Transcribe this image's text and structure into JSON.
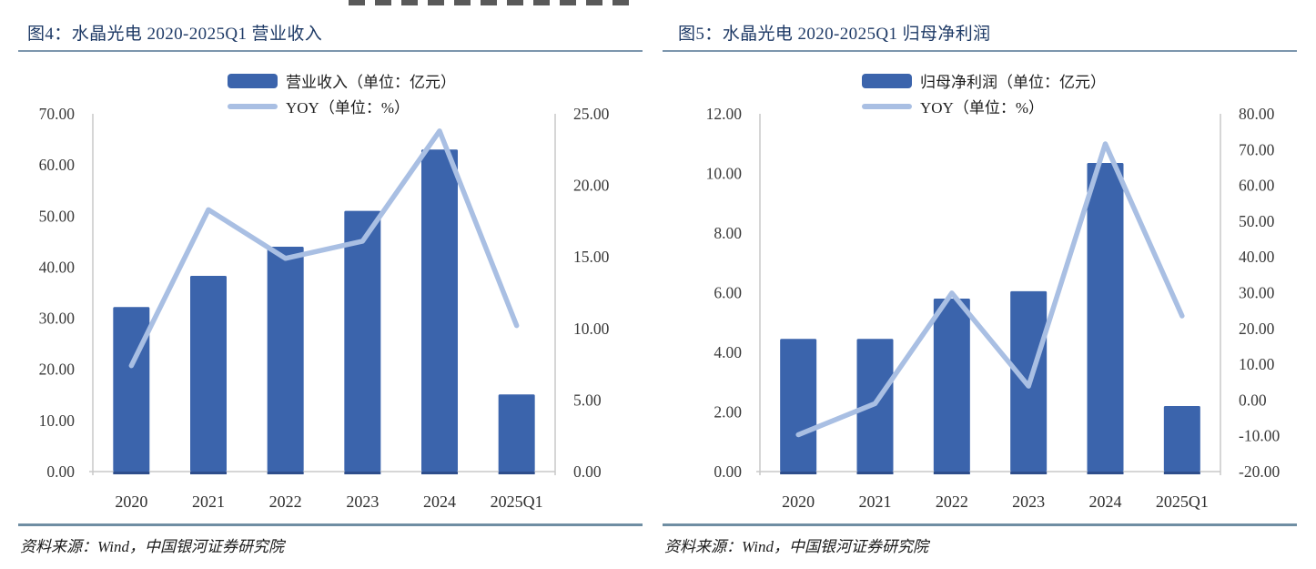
{
  "colors": {
    "bar": "#3B64AC",
    "bar_edge": "#2E4E8C",
    "line": "#A9BFE3",
    "title": "#1E3A66",
    "rule_top": "#7C96AD",
    "rule_bottom": "#6F8EA3",
    "axis": "#C9C9C9"
  },
  "footer": {
    "source": "资料来源：Wind，中国银河证券研究院"
  },
  "chart_data": [
    {
      "type": "bar+line",
      "title": "图4：水晶光电 2020-2025Q1 营业收入",
      "categories": [
        "2020",
        "2021",
        "2022",
        "2023",
        "2024",
        "2025Q1"
      ],
      "series": [
        {
          "name": "营业收入（单位：亿元）",
          "type": "bar",
          "axis": "left",
          "values": [
            32.2,
            38.3,
            44.0,
            51.0,
            63.0,
            15.1
          ]
        },
        {
          "name": "YOY（单位：%）",
          "type": "line",
          "axis": "right",
          "values": [
            7.4,
            18.3,
            14.9,
            16.1,
            23.8,
            10.2
          ]
        }
      ],
      "y_left": {
        "min": 0,
        "max": 70,
        "ticks": [
          0,
          10,
          20,
          30,
          40,
          50,
          60,
          70
        ]
      },
      "y_right": {
        "min": 0,
        "max": 25,
        "ticks": [
          0,
          5,
          10,
          15,
          20,
          25
        ]
      },
      "xlabel": "",
      "ylabel": "",
      "legend_position": "top",
      "grid": false
    },
    {
      "type": "bar+line",
      "title": "图5：水晶光电 2020-2025Q1 归母净利润",
      "categories": [
        "2020",
        "2021",
        "2022",
        "2023",
        "2024",
        "2025Q1"
      ],
      "series": [
        {
          "name": "归母净利润（单位：亿元）",
          "type": "bar",
          "axis": "left",
          "values": [
            4.45,
            4.45,
            5.8,
            6.05,
            10.35,
            2.2
          ]
        },
        {
          "name": "YOY（单位：%）",
          "type": "line",
          "axis": "right",
          "values": [
            -9.7,
            -1.0,
            29.9,
            3.9,
            71.6,
            23.5
          ]
        }
      ],
      "y_left": {
        "min": 0,
        "max": 12,
        "ticks": [
          0,
          2,
          4,
          6,
          8,
          10,
          12
        ]
      },
      "y_right": {
        "min": -20,
        "max": 80,
        "ticks": [
          -20,
          -10,
          0,
          10,
          20,
          30,
          40,
          50,
          60,
          70,
          80
        ]
      },
      "xlabel": "",
      "ylabel": "",
      "legend_position": "top",
      "grid": false
    }
  ]
}
